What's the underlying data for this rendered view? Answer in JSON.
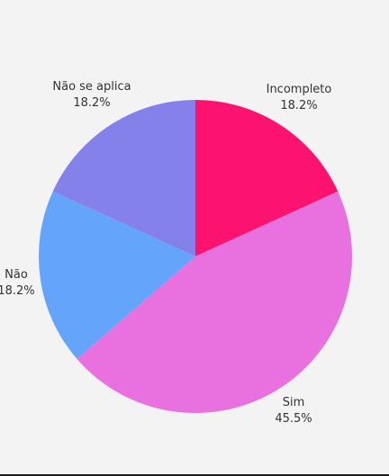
{
  "chart_data": {
    "type": "pie",
    "categories": [
      "Incompleto",
      "Sim",
      "Não",
      "Não se aplica"
    ],
    "values": [
      18.2,
      45.5,
      18.2,
      18.2
    ],
    "value_labels": [
      "18.2%",
      "45.5%",
      "18.2%",
      "18.2%"
    ],
    "colors": [
      "#fc136f",
      "#e871df",
      "#64a5fb",
      "#8481ea"
    ],
    "start_angle_deg": 0,
    "direction": "clockwise",
    "legend": "none"
  }
}
